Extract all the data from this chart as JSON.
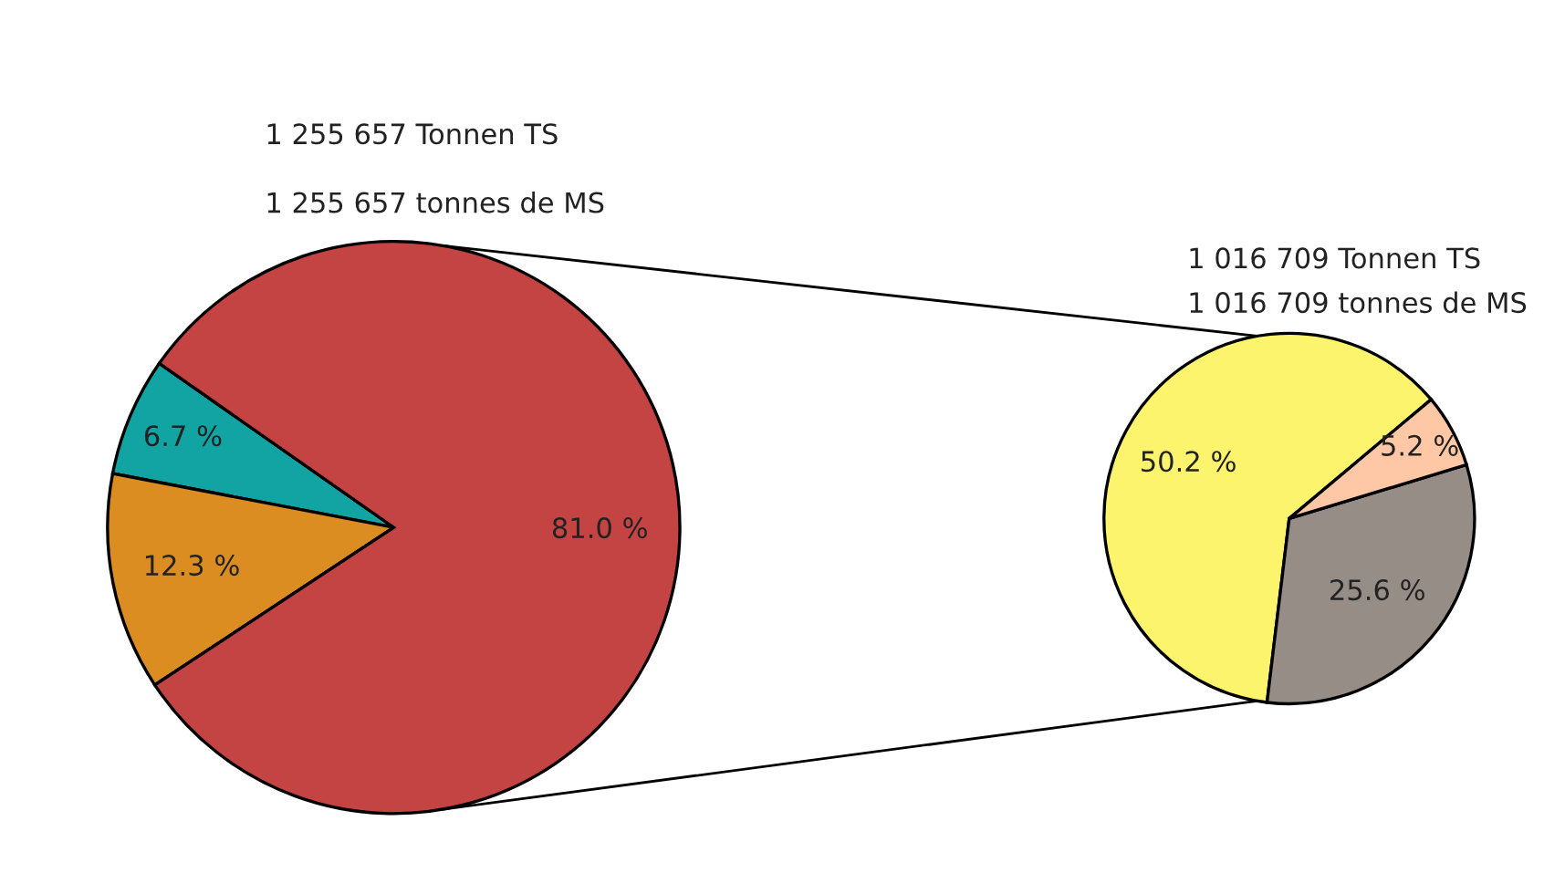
{
  "chart_data": [
    {
      "type": "pie",
      "title": "1 255 657 Tonnen TS",
      "subtitle": "1 255 657 tonnes de MS",
      "categories": [
        null,
        null,
        null
      ],
      "values": [
        6.7,
        12.3,
        81.0
      ],
      "colors": [
        "#12a3a3",
        "#db8d22",
        "#c44343"
      ],
      "value_labels": [
        "6.7 %",
        "12.3 %",
        "81.0 %"
      ]
    },
    {
      "type": "pie",
      "title": "1 016 709 Tonnen TS",
      "subtitle": "1 016 709 tonnes de MS",
      "categories": [
        null,
        null,
        null
      ],
      "values": [
        50.2,
        25.6,
        5.2
      ],
      "colors": [
        "#fdf46e",
        "#978d87",
        "#fec8a6"
      ],
      "value_labels": [
        "50.2 %",
        "25.6 %",
        "5.2 %"
      ]
    }
  ]
}
